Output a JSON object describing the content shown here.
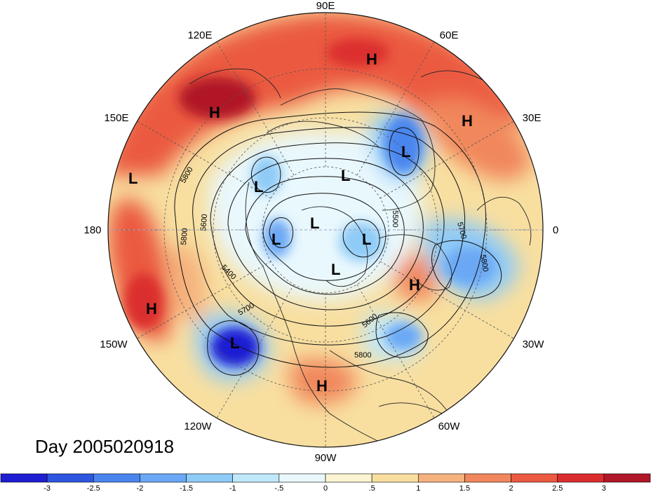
{
  "map": {
    "title": "Day 2005020918",
    "longitude_labels": [
      {
        "text": "90E"
      },
      {
        "text": "60E"
      },
      {
        "text": "30E"
      },
      {
        "text": "0"
      },
      {
        "text": "30W"
      },
      {
        "text": "60W"
      },
      {
        "text": "90W"
      },
      {
        "text": "120W"
      },
      {
        "text": "150W"
      },
      {
        "text": "180"
      },
      {
        "text": "150E"
      },
      {
        "text": "120E"
      }
    ],
    "pressure_centers": [
      {
        "type": "H",
        "label": "H"
      },
      {
        "type": "H",
        "label": "H"
      },
      {
        "type": "H",
        "label": "H"
      },
      {
        "type": "L",
        "label": "L"
      },
      {
        "type": "L",
        "label": "L"
      },
      {
        "type": "L",
        "label": "L"
      },
      {
        "type": "L",
        "label": "L"
      },
      {
        "type": "L",
        "label": "L"
      },
      {
        "type": "L",
        "label": "L"
      },
      {
        "type": "L",
        "label": "L"
      },
      {
        "type": "L",
        "label": "L"
      },
      {
        "type": "H",
        "label": "H"
      },
      {
        "type": "H",
        "label": "H"
      },
      {
        "type": "L",
        "label": "L"
      },
      {
        "type": "H",
        "label": "H"
      },
      {
        "type": "L",
        "label": "L"
      }
    ],
    "contour_labels": [
      "5800",
      "5600",
      "5800",
      "5400",
      "5700",
      "5600",
      "5800",
      "5700",
      "5800",
      "5500"
    ],
    "colorbar": {
      "colors": [
        "#1e1ed2",
        "#2d55e0",
        "#4a85ee",
        "#6aa8f5",
        "#8fcbf7",
        "#bfe8fb",
        "#e9f8fd",
        "#fcf4d2",
        "#f8dfa0",
        "#f5b27d",
        "#f1875c",
        "#eb5a41",
        "#db2d2f",
        "#b01728"
      ],
      "tick_labels": [
        "-3",
        "-2.5",
        "-2",
        "-1.5",
        "-1",
        "-.5",
        "0",
        ".5",
        "1",
        "1.5",
        "2",
        "2.5",
        "3"
      ]
    }
  }
}
